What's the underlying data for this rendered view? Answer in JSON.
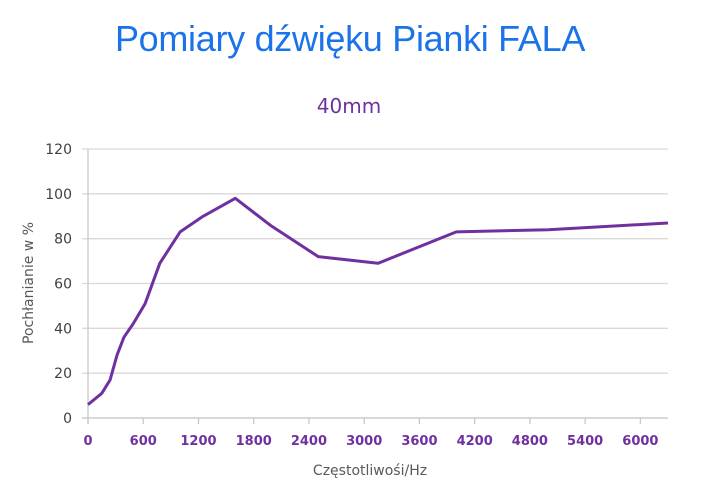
{
  "header": {
    "title": "Pomiary dźwięku Pianki FALA",
    "subtitle": "40mm"
  },
  "colors": {
    "title": "#1a73e8",
    "line": "#7030a0",
    "x_tick_labels": "#7030a0",
    "gridlines": "#d9d9d9"
  },
  "chart_data": {
    "type": "line",
    "title": "40mm",
    "xlabel": "Częstotliwośi/Hz",
    "ylabel": "Pochłanianie w %",
    "xlim": [
      0,
      6300
    ],
    "ylim": [
      0,
      120
    ],
    "x_ticks": [
      0,
      600,
      1200,
      1800,
      2400,
      3000,
      3600,
      4200,
      4800,
      5400,
      6000
    ],
    "y_ticks": [
      0,
      20,
      40,
      60,
      80,
      100,
      120
    ],
    "grid": "horizontal",
    "legend": "none",
    "series": [
      {
        "name": "40mm",
        "color": "#7030a0",
        "x": [
          0,
          150,
          240,
          315,
          390,
          490,
          620,
          780,
          1000,
          1250,
          1600,
          1980,
          2500,
          3150,
          4000,
          5000,
          6300
        ],
        "values": [
          6,
          11,
          17,
          28,
          36,
          42,
          51,
          69,
          83,
          90,
          98,
          86,
          72,
          69,
          83,
          84,
          87
        ]
      }
    ]
  }
}
